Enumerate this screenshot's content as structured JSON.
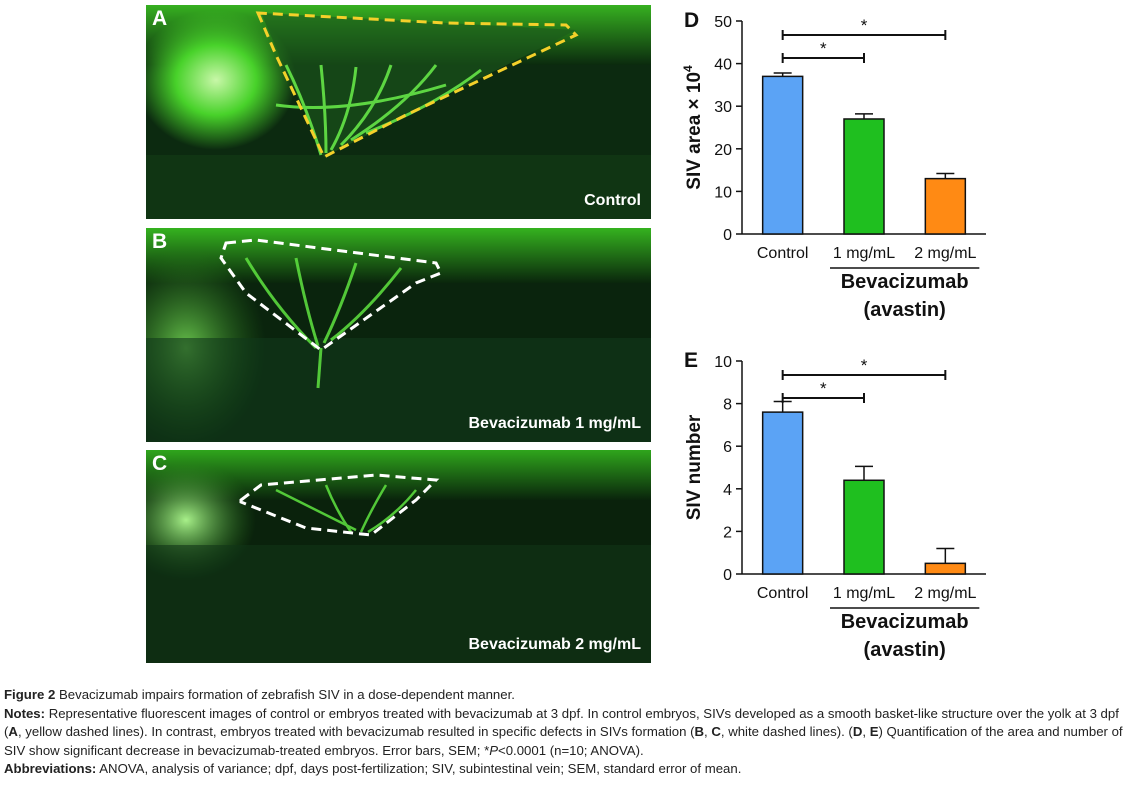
{
  "panels": [
    {
      "letter": "A",
      "condition": "Control",
      "outline_color": "#f4d02a"
    },
    {
      "letter": "B",
      "condition": "Bevacizumab 1 mg/mL",
      "outline_color": "#ffffff"
    },
    {
      "letter": "C",
      "condition": "Bevacizumab 2 mg/mL",
      "outline_color": "#ffffff"
    }
  ],
  "chart_data": [
    {
      "panel": "D",
      "type": "bar",
      "ylabel": "SIV area × 10",
      "ylabel_exponent": "4",
      "categories": [
        "Control",
        "1 mg/mL",
        "2 mg/mL"
      ],
      "values": [
        37,
        27,
        13
      ],
      "errors": [
        0.8,
        1.2,
        1.2
      ],
      "ylim": [
        0,
        50
      ],
      "yticks": [
        0,
        10,
        20,
        30,
        40,
        50
      ],
      "group_label_line1": "Bevacizumab",
      "group_label_line2": "(avastin)",
      "significance": [
        {
          "from": 0,
          "to": 1,
          "label": "*"
        },
        {
          "from": 0,
          "to": 2,
          "label": "*"
        }
      ],
      "colors": [
        "#5ba3f5",
        "#1fbf1f",
        "#ff8a14"
      ]
    },
    {
      "panel": "E",
      "type": "bar",
      "ylabel": "SIV number",
      "categories": [
        "Control",
        "1 mg/mL",
        "2 mg/mL"
      ],
      "values": [
        7.6,
        4.4,
        0.5
      ],
      "errors": [
        0.5,
        0.65,
        0.7
      ],
      "ylim": [
        0,
        10
      ],
      "yticks": [
        0,
        2,
        4,
        6,
        8,
        10
      ],
      "group_label_line1": "Bevacizumab",
      "group_label_line2": "(avastin)",
      "significance": [
        {
          "from": 0,
          "to": 1,
          "label": "*"
        },
        {
          "from": 0,
          "to": 2,
          "label": "*"
        }
      ],
      "colors": [
        "#5ba3f5",
        "#1fbf1f",
        "#ff8a14"
      ]
    }
  ],
  "caption": {
    "figure_label": "Figure 2",
    "figure_title": "Bevacizumab impairs formation of zebrafish SIV in a dose-dependent manner.",
    "notes_label": "Notes:",
    "notes_1": "Representative fluorescent images of control or embryos treated with bevacizumab at 3 dpf. In control embryos, SIVs developed as a smooth basket-like structure over the yolk at 3 dpf (",
    "notes_A": "A",
    "notes_2": ", yellow dashed lines). In contrast, embryos treated with bevacizumab resulted in specific defects in SIVs formation (",
    "notes_B": "B",
    "notes_sep1": ", ",
    "notes_C": "C",
    "notes_3": ", white dashed lines). (",
    "notes_D": "D",
    "notes_sep2": ", ",
    "notes_E": "E",
    "notes_4": ") Quantification of the area and number of SIV show significant decrease in bevacizumab-treated embryos. Error bars, SEM; *",
    "notes_P": "P",
    "notes_5": "<0.0001 (n=10; ANOVA).",
    "abbrev_label": "Abbreviations:",
    "abbrev_text": "ANOVA, analysis of variance; dpf, days post-fertilization; SIV, subintestinal vein; SEM, standard error of mean."
  }
}
